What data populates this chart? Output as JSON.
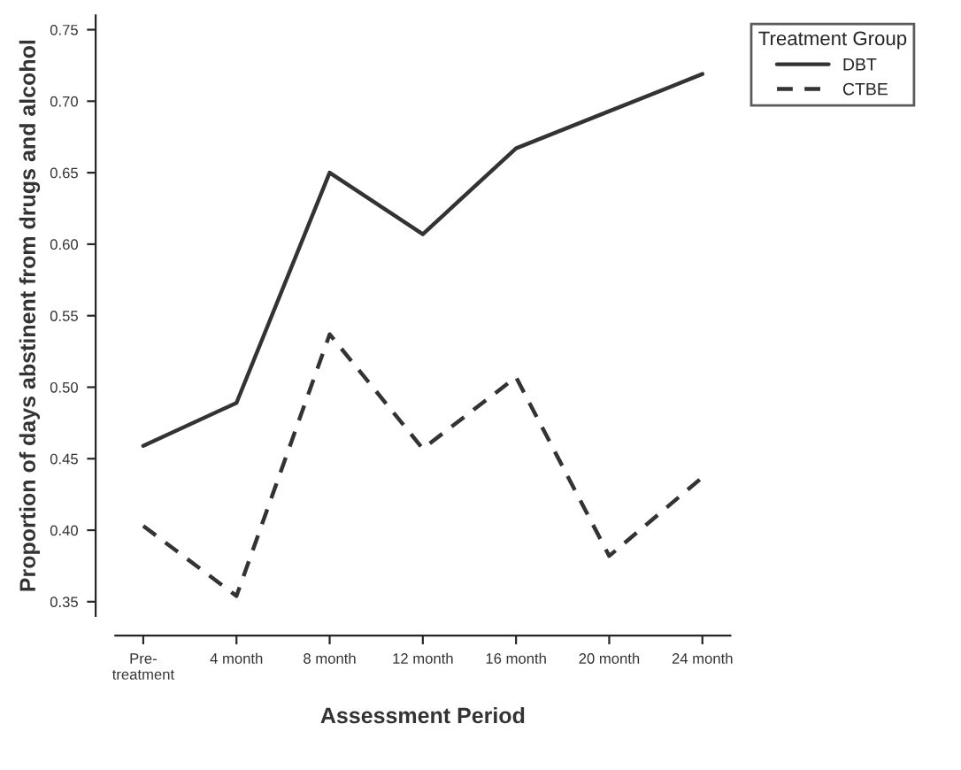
{
  "chart_data": {
    "type": "line",
    "xlabel": "Assessment Period",
    "ylabel": "Proportion of days abstinent from drugs and alcohol",
    "legend_title": "Treatment Group",
    "categories": [
      "Pre-\ntreatment",
      "4 month",
      "8 month",
      "12 month",
      "16 month",
      "20 month",
      "24 month"
    ],
    "series": [
      {
        "name": "DBT",
        "color": "#333333",
        "line_style": "solid",
        "values": [
          0.459,
          0.489,
          0.65,
          0.607,
          0.667,
          0.693,
          0.719
        ]
      },
      {
        "name": "CTBE",
        "color": "#333333",
        "line_style": "dashed",
        "values": [
          0.403,
          0.354,
          0.537,
          0.457,
          0.507,
          0.382,
          0.437
        ]
      }
    ],
    "ylim": [
      0.34,
      0.76
    ],
    "yticks": [
      0.35,
      {
        "value": 0.4,
        "label": "0.40"
      },
      0.45,
      {
        "value": 0.5,
        "label": "0.50"
      },
      0.55,
      {
        "value": 0.6,
        "label": "0.60"
      },
      0.65,
      {
        "value": 0.7,
        "label": "0.70"
      },
      0.75
    ],
    "grid": false,
    "legend": "top right",
    "marker": "none"
  }
}
